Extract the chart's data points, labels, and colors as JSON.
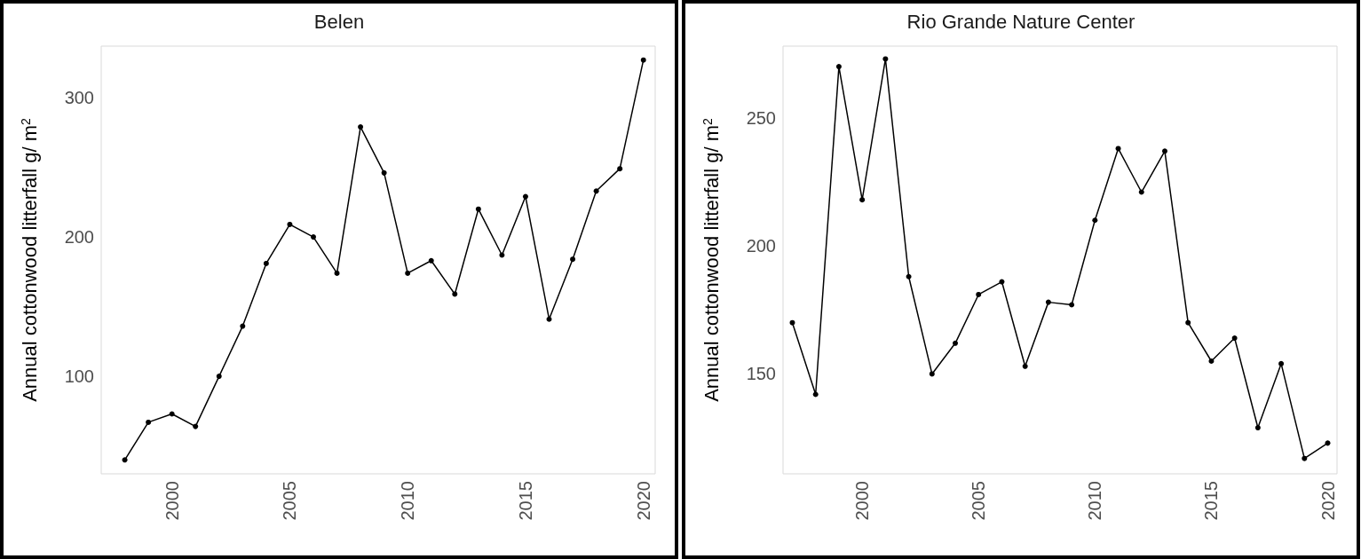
{
  "chart_data": [
    {
      "type": "line",
      "title": "Belen",
      "ylabel": "Annual cottonwood litterfall g/ m$^{2}$",
      "marker": "circle",
      "line_style": "solid",
      "xlim": [
        1997,
        2020.5
      ],
      "ylim": [
        30,
        337
      ],
      "xticks": [
        2000,
        2005,
        2010,
        2015,
        2020
      ],
      "yticks": [
        100,
        200,
        300
      ],
      "x": [
        1998,
        1999,
        2000,
        2001,
        2002,
        2003,
        2004,
        2005,
        2006,
        2007,
        2008,
        2009,
        2010,
        2011,
        2012,
        2013,
        2014,
        2015,
        2016,
        2017,
        2018,
        2019,
        2020
      ],
      "series": [
        {
          "color": "#000000",
          "values": [
            40,
            67,
            73,
            64,
            100,
            136,
            181,
            209,
            200,
            174,
            279,
            246,
            174,
            183,
            159,
            220,
            187,
            229,
            141,
            184,
            233,
            249,
            327
          ]
        }
      ]
    },
    {
      "type": "line",
      "title": "Rio Grande Nature Center",
      "ylabel": "Annual cottonwood litterfall g/ m$^{2}$",
      "marker": "circle",
      "line_style": "solid",
      "xlim": [
        1996.6,
        2020.4
      ],
      "ylim": [
        111,
        278
      ],
      "xticks": [
        2000,
        2005,
        2010,
        2015,
        2020
      ],
      "yticks": [
        150,
        200,
        250
      ],
      "x": [
        1997,
        1998,
        1999,
        2000,
        2001,
        2002,
        2003,
        2004,
        2005,
        2006,
        2007,
        2008,
        2009,
        2010,
        2011,
        2012,
        2013,
        2014,
        2015,
        2016,
        2017,
        2018,
        2019,
        2020
      ],
      "series": [
        {
          "color": "#000000",
          "values": [
            170,
            142,
            270,
            218,
            273,
            188,
            150,
            162,
            181,
            186,
            153,
            178,
            177,
            210,
            238,
            221,
            237,
            170,
            155,
            164,
            129,
            154,
            117,
            123
          ]
        }
      ]
    }
  ]
}
